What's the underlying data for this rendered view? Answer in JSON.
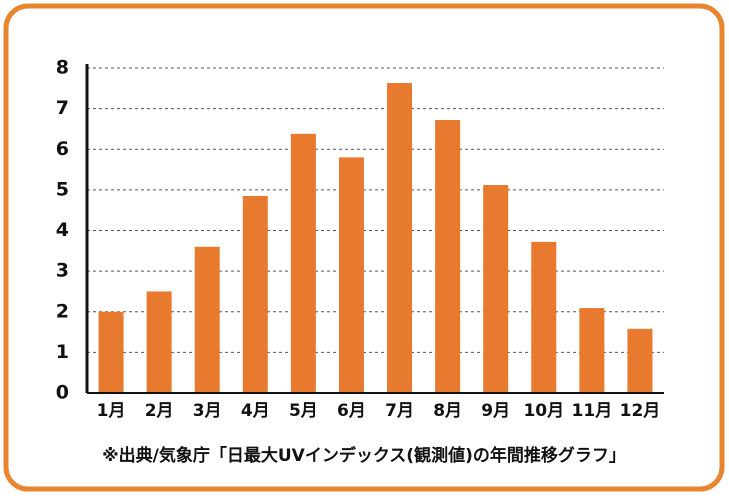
{
  "chart_data": {
    "type": "bar",
    "caption": "※出典/気象庁「日最大UVインデックス(観測値)の年間推移グラフ」",
    "categories": [
      "1月",
      "2月",
      "3月",
      "4月",
      "5月",
      "6月",
      "7月",
      "8月",
      "9月",
      "10月",
      "11月",
      "12月"
    ],
    "values": [
      2.0,
      2.5,
      3.6,
      4.85,
      6.38,
      5.8,
      7.63,
      6.72,
      5.12,
      3.72,
      2.09,
      1.58
    ],
    "color": "#e87a30",
    "ylim": [
      0,
      8
    ],
    "yticks": [
      0,
      1,
      2,
      3,
      4,
      5,
      6,
      7,
      8
    ],
    "grid": true
  }
}
